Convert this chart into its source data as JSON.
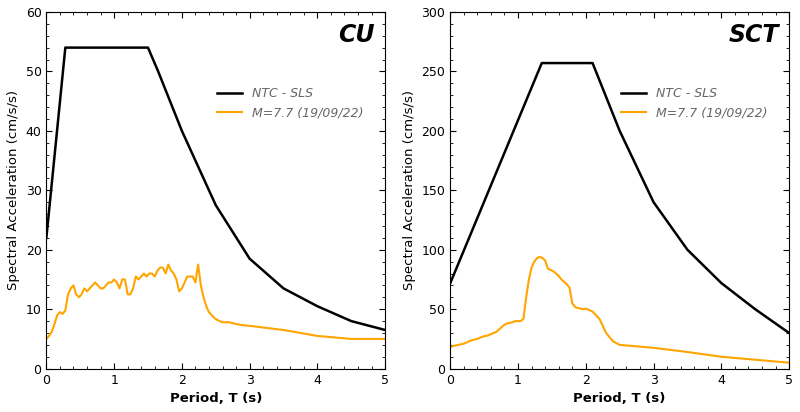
{
  "cu_title": "CU",
  "sct_title": "SCT",
  "xlabel": "Period, T (s)",
  "ylabel": "Spectral Acceleration (cm/s/s)",
  "legend_label_ntc": "NTC - SLS",
  "legend_label_eq": "M=7.7 (19/09/22)",
  "ntc_color": "#000000",
  "eq_color": "#FFA500",
  "cu_ylim": [
    0,
    60
  ],
  "cu_yticks": [
    0,
    10,
    20,
    30,
    40,
    50,
    60
  ],
  "sct_ylim": [
    0,
    300
  ],
  "sct_yticks": [
    0,
    50,
    100,
    150,
    200,
    250,
    300
  ],
  "xlim": [
    0,
    5
  ],
  "xticks": [
    0,
    1,
    2,
    3,
    4,
    5
  ],
  "cu_ntc_x": [
    0.0,
    0.28,
    0.5,
    1.5,
    1.65,
    2.0,
    2.5,
    3.0,
    3.5,
    4.0,
    4.5,
    5.0
  ],
  "cu_ntc_y": [
    22.0,
    54.0,
    54.0,
    54.0,
    50.0,
    40.0,
    27.5,
    18.5,
    13.5,
    10.5,
    8.0,
    6.5
  ],
  "sct_ntc_x": [
    0.0,
    1.35,
    1.55,
    2.1,
    2.5,
    3.0,
    3.5,
    4.0,
    4.5,
    5.0
  ],
  "sct_ntc_y": [
    72.0,
    257.0,
    257.0,
    257.0,
    200.0,
    140.0,
    100.0,
    72.0,
    50.0,
    30.0
  ],
  "cu_eq_x": [
    0.0,
    0.04,
    0.08,
    0.12,
    0.16,
    0.2,
    0.24,
    0.28,
    0.32,
    0.36,
    0.4,
    0.44,
    0.48,
    0.52,
    0.56,
    0.6,
    0.64,
    0.68,
    0.72,
    0.76,
    0.8,
    0.84,
    0.88,
    0.92,
    0.96,
    1.0,
    1.04,
    1.08,
    1.12,
    1.16,
    1.2,
    1.24,
    1.28,
    1.32,
    1.36,
    1.4,
    1.44,
    1.48,
    1.52,
    1.56,
    1.6,
    1.64,
    1.68,
    1.72,
    1.76,
    1.8,
    1.84,
    1.88,
    1.92,
    1.96,
    2.0,
    2.04,
    2.08,
    2.12,
    2.16,
    2.2,
    2.24,
    2.28,
    2.32,
    2.36,
    2.4,
    2.44,
    2.48,
    2.52,
    2.56,
    2.6,
    2.7,
    2.8,
    2.9,
    3.0,
    3.5,
    4.0,
    4.5,
    5.0
  ],
  "cu_eq_y": [
    5.0,
    5.5,
    6.2,
    7.5,
    9.0,
    9.5,
    9.2,
    9.8,
    12.5,
    13.5,
    14.0,
    12.5,
    12.0,
    12.5,
    13.5,
    13.0,
    13.5,
    14.0,
    14.5,
    14.0,
    13.5,
    13.5,
    14.0,
    14.5,
    14.5,
    15.0,
    14.5,
    13.5,
    15.0,
    15.0,
    12.5,
    12.5,
    13.5,
    15.5,
    15.0,
    15.5,
    16.0,
    15.5,
    16.0,
    16.0,
    15.5,
    16.5,
    17.0,
    17.0,
    16.0,
    17.5,
    16.5,
    16.0,
    15.0,
    13.0,
    13.5,
    14.5,
    15.5,
    15.5,
    15.5,
    14.5,
    17.5,
    14.0,
    12.0,
    10.5,
    9.5,
    9.0,
    8.5,
    8.2,
    8.0,
    7.8,
    7.8,
    7.5,
    7.3,
    7.2,
    6.5,
    5.5,
    5.0,
    5.0
  ],
  "sct_eq_x": [
    0.0,
    0.04,
    0.08,
    0.12,
    0.16,
    0.2,
    0.24,
    0.28,
    0.32,
    0.36,
    0.4,
    0.44,
    0.48,
    0.52,
    0.56,
    0.6,
    0.64,
    0.68,
    0.72,
    0.76,
    0.8,
    0.84,
    0.88,
    0.92,
    0.96,
    1.0,
    1.04,
    1.08,
    1.12,
    1.16,
    1.2,
    1.24,
    1.28,
    1.32,
    1.36,
    1.4,
    1.44,
    1.48,
    1.52,
    1.56,
    1.6,
    1.64,
    1.68,
    1.72,
    1.76,
    1.8,
    1.84,
    1.88,
    1.92,
    1.96,
    2.0,
    2.1,
    2.2,
    2.3,
    2.4,
    2.5,
    2.6,
    2.7,
    2.8,
    2.9,
    3.0,
    3.5,
    4.0,
    5.0
  ],
  "sct_eq_y": [
    18.0,
    19.0,
    19.5,
    20.0,
    20.5,
    21.0,
    22.0,
    23.0,
    24.0,
    24.5,
    25.0,
    26.0,
    27.0,
    27.5,
    28.0,
    29.0,
    30.0,
    31.0,
    33.0,
    35.0,
    37.0,
    38.0,
    38.5,
    39.0,
    40.0,
    40.0,
    40.0,
    42.0,
    60.0,
    75.0,
    85.0,
    90.0,
    93.0,
    94.0,
    93.0,
    91.0,
    84.0,
    83.0,
    82.0,
    80.0,
    78.0,
    75.0,
    73.0,
    71.0,
    68.0,
    55.0,
    52.0,
    51.0,
    50.5,
    50.0,
    50.5,
    48.0,
    42.0,
    30.0,
    23.0,
    20.0,
    19.5,
    19.0,
    18.5,
    18.0,
    17.5,
    14.0,
    10.0,
    5.0
  ],
  "bg_color": "#ffffff",
  "linewidth_ntc": 1.8,
  "linewidth_eq": 1.5,
  "title_fontsize": 17,
  "label_fontsize": 9.5,
  "tick_fontsize": 9,
  "legend_fontsize": 9
}
